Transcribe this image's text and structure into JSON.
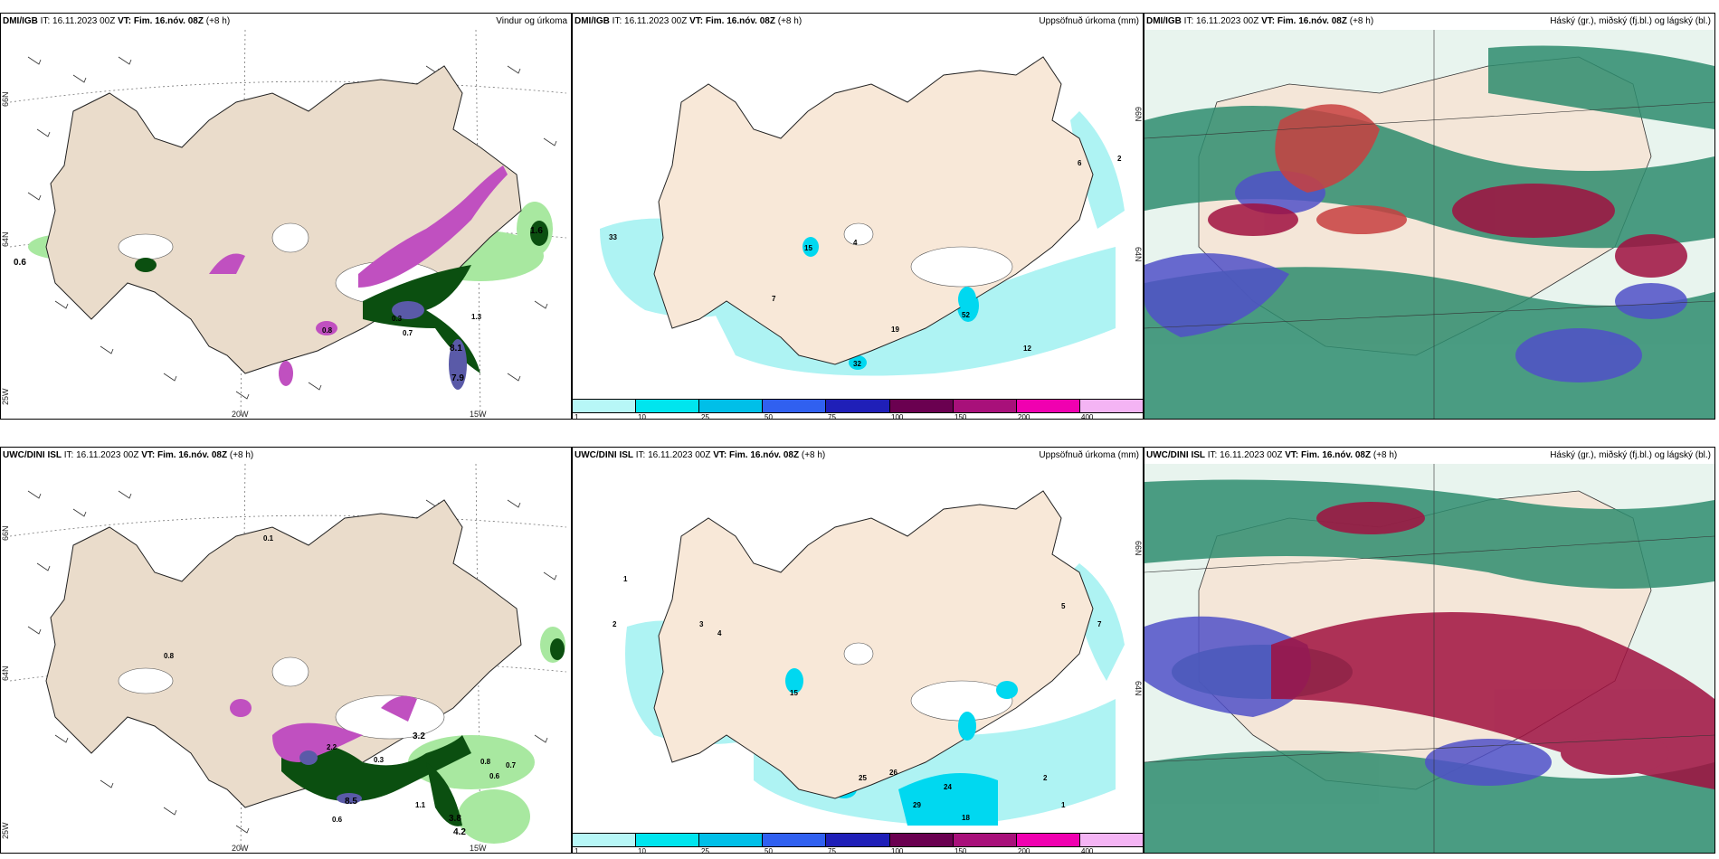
{
  "panels": {
    "dmi_wind": {
      "model": "DMI/IGB",
      "initial_time_label": "IT:",
      "initial_time": "16.11.2023 00Z",
      "valid_time_label": "VT:",
      "valid_time": "Fim. 16.nóv. 08Z",
      "lead_time": "(+8 h)",
      "title": "Vindur og úrkoma",
      "lon_labels": [
        "20W",
        "15W"
      ],
      "lat_labels": [
        "66N",
        "64N",
        "25W"
      ],
      "values": [
        "0.6",
        "1.6",
        "8.1",
        "7.9",
        "0.3",
        "0.7",
        "0.8",
        "1.3"
      ]
    },
    "dmi_precip": {
      "model": "DMI/IGB",
      "initial_time_label": "IT:",
      "initial_time": "16.11.2023 00Z",
      "valid_time_label": "VT:",
      "valid_time": "Fim. 16.nóv. 08Z",
      "lead_time": "(+8 h)",
      "title": "Uppsöfnuð úrkoma (mm)",
      "lat_labels": [
        "66N",
        "64N"
      ],
      "values": [
        "33",
        "15",
        "4",
        "7",
        "19",
        "52",
        "32",
        "12",
        "6",
        "2"
      ]
    },
    "dmi_cloud": {
      "model": "DMI/IGB",
      "initial_time_label": "IT:",
      "initial_time": "16.11.2023 00Z",
      "valid_time_label": "VT:",
      "valid_time": "Fim. 16.nóv. 08Z",
      "lead_time": "(+8 h)",
      "title": "Háský (gr.), miðský (fj.bl.) og lágský (bl.)"
    },
    "uwc_wind": {
      "model": "UWC/DINI ISL",
      "initial_time_label": "IT:",
      "initial_time": "16.11.2023 00Z",
      "valid_time_label": "VT:",
      "valid_time": "Fim. 16.nóv. 08Z",
      "lead_time": "(+8 h)",
      "title": "",
      "lon_labels": [
        "20W",
        "15W"
      ],
      "lat_labels": [
        "66N",
        "64N",
        "25W"
      ],
      "values": [
        "0.1",
        "0.8",
        "2.2",
        "8.5",
        "3.2",
        "0.8",
        "0.6",
        "0.7",
        "3.8",
        "4.2",
        "1.1",
        "0.6",
        "0.3"
      ]
    },
    "uwc_precip": {
      "model": "UWC/DINI ISL",
      "initial_time_label": "IT:",
      "initial_time": "16.11.2023 00Z",
      "valid_time_label": "VT:",
      "valid_time": "Fim. 16.nóv. 08Z",
      "lead_time": "(+8 h)",
      "title": "Uppsöfnuð úrkoma (mm)",
      "lat_labels": [
        "66N",
        "64N"
      ],
      "values": [
        "1",
        "2",
        "3",
        "4",
        "5",
        "7",
        "15",
        "25",
        "26",
        "29",
        "24",
        "18",
        "2",
        "1"
      ]
    },
    "uwc_cloud": {
      "model": "UWC/DINI ISL",
      "initial_time_label": "IT:",
      "initial_time": "16.11.2023 00Z",
      "valid_time_label": "VT:",
      "valid_time": "Fim. 16.nóv. 08Z",
      "lead_time": "(+8 h)",
      "title": "Háský (gr.), miðský (fj.bl.) og lágský (bl.)"
    }
  },
  "precip_colorbar": {
    "colors": [
      "#b7f7f7",
      "#00e5ee",
      "#00bfe8",
      "#3060f0",
      "#1f1fb8",
      "#6a0050",
      "#a8107a",
      "#f000b0",
      "#f4b4f4"
    ],
    "ticks": [
      "1",
      "10",
      "25",
      "50",
      "75",
      "100",
      "150",
      "200",
      "400"
    ]
  },
  "colors": {
    "land": "#f8e8d8",
    "land_wind": "#eadccb",
    "precip_light": "#aef3f3",
    "precip_mid": "#00d8f0",
    "wind_precip_light": "#a8e8a0",
    "wind_precip_dark": "#0b4f10",
    "wind_precip_purple": "#c050c0",
    "cloud_high": "#2e8c6e",
    "cloud_mid": "#5050c8",
    "cloud_low": "#a01040"
  }
}
